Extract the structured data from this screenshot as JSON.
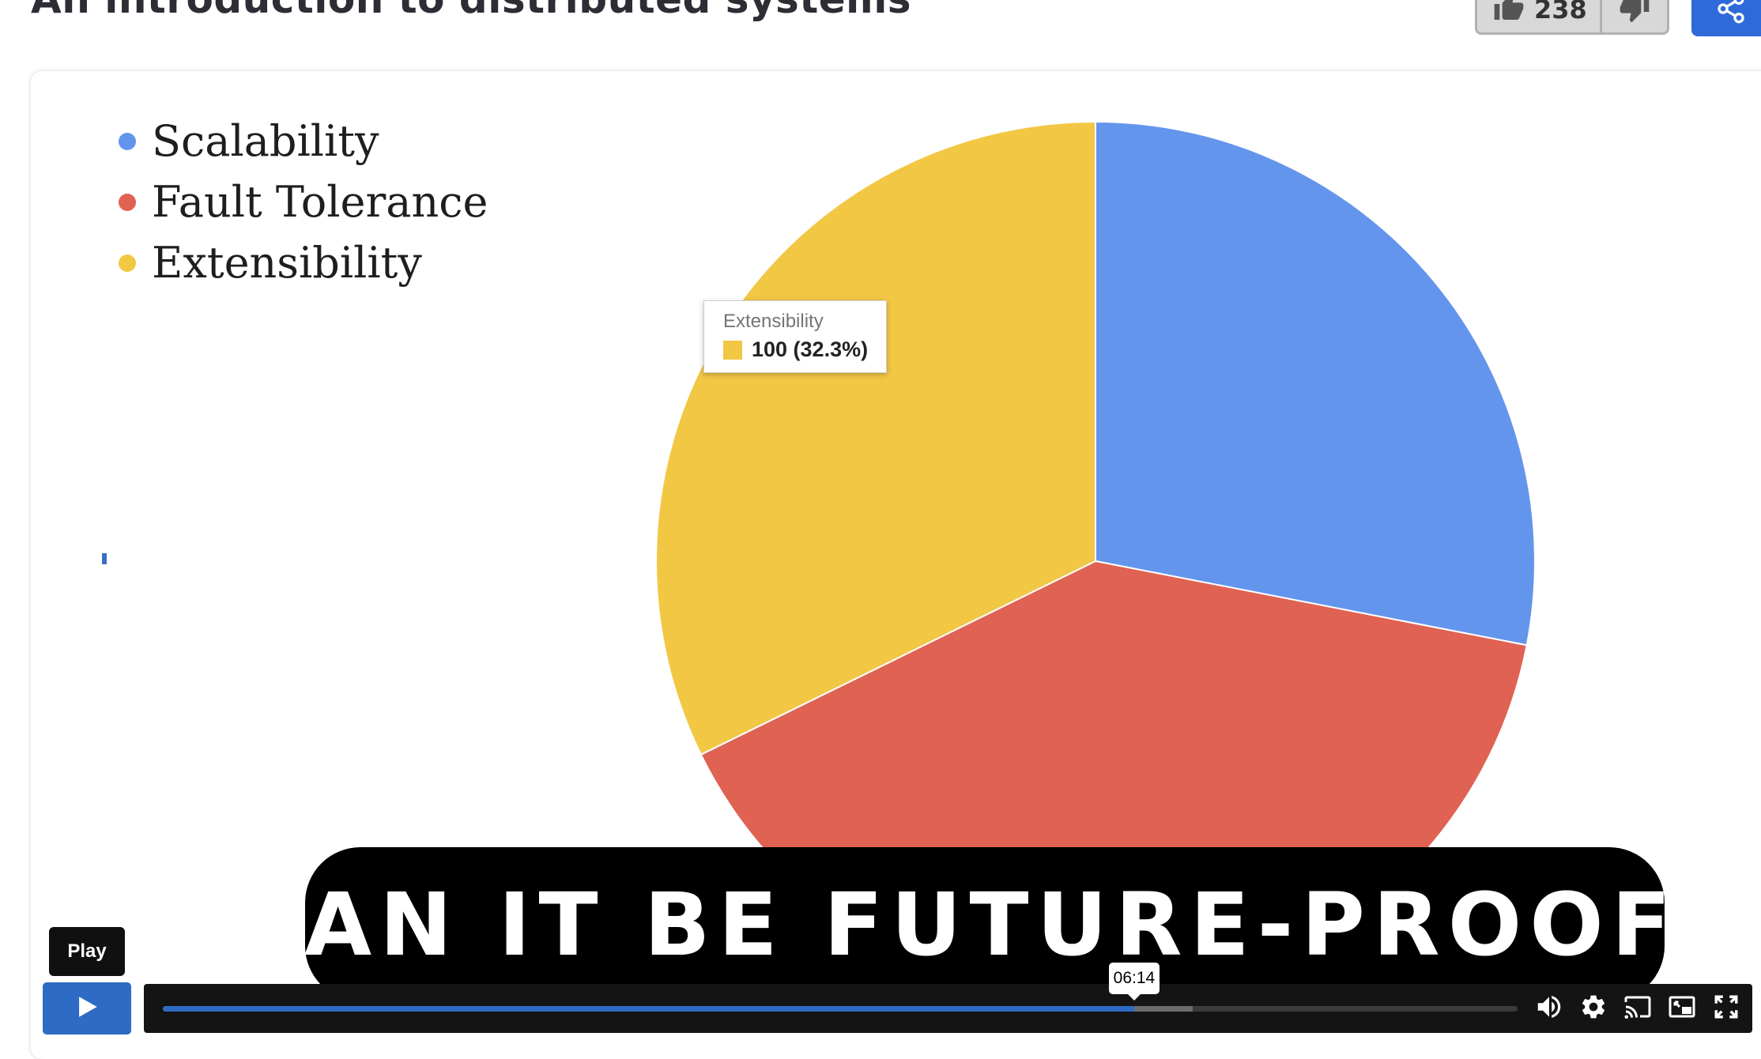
{
  "header": {
    "title": "An introduction to distributed systems",
    "like_count": "238",
    "like_icon": "thumbs-up-icon",
    "dislike_icon": "thumbs-down-icon",
    "share_icon": "share-icon"
  },
  "colors": {
    "scalability": "#6495ED",
    "fault_tolerance": "#E06253",
    "extensibility": "#F2C744",
    "accent": "#2e6bc4"
  },
  "chart_data": {
    "type": "pie",
    "title": "",
    "legend_position": "top-left",
    "slices": [
      {
        "label": "Scalability",
        "value": 87,
        "color": "#6495ED"
      },
      {
        "label": "Fault Tolerance",
        "value": 123,
        "color": "#E06253"
      },
      {
        "label": "Extensibility",
        "value": 100,
        "color": "#F2C744"
      }
    ],
    "tooltip": {
      "label": "Extensibility",
      "value_text": "100 (32.3%)"
    }
  },
  "caption": {
    "text": "CAN IT BE FUTURE-PROOF?"
  },
  "player": {
    "play_tooltip": "Play",
    "hover_time": "06:14",
    "played_fraction": 0.717,
    "buffered_fraction": 0.76,
    "icons": [
      "play-icon",
      "volume-icon",
      "settings-icon",
      "cast-icon",
      "picture-in-picture-icon",
      "fullscreen-icon"
    ]
  }
}
